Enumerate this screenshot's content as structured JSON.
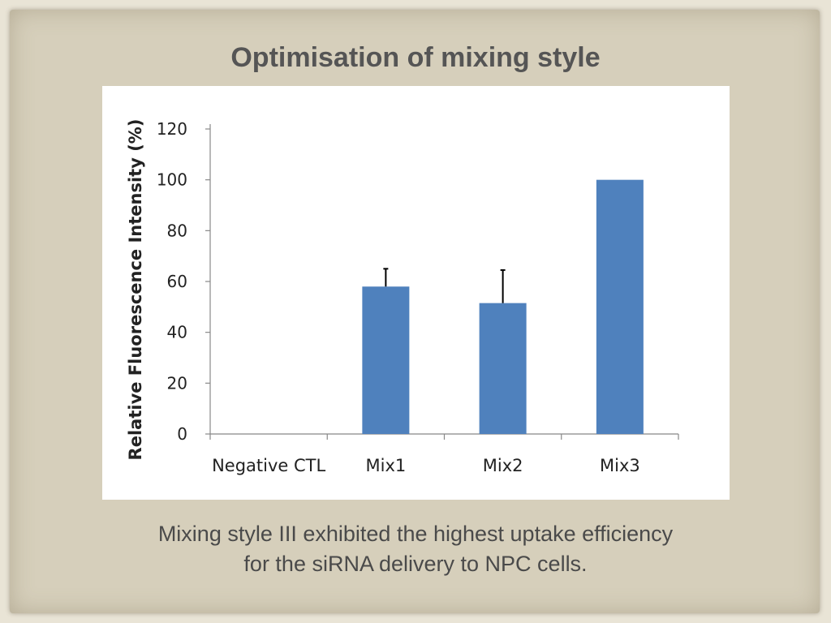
{
  "slide": {
    "title": "Optimisation of mixing style",
    "caption_line1": "Mixing style III exhibited the highest uptake efficiency",
    "caption_line2": "for the siRNA delivery to NPC cells."
  },
  "colors": {
    "bar": "#4f81bd",
    "background": "#d6cfbb"
  },
  "chart_data": {
    "type": "bar",
    "categories": [
      "Negative CTL",
      "Mix1",
      "Mix2",
      "Mix3"
    ],
    "values": [
      0,
      58,
      51.5,
      100
    ],
    "error_bars": [
      null,
      7,
      13,
      null
    ],
    "title": "",
    "xlabel": "",
    "ylabel": "Relative Fluorescence Intensity (%)",
    "ylim": [
      0,
      120
    ],
    "yticks": [
      0,
      20,
      40,
      60,
      80,
      100,
      120
    ],
    "grid": false,
    "legend": "none"
  }
}
